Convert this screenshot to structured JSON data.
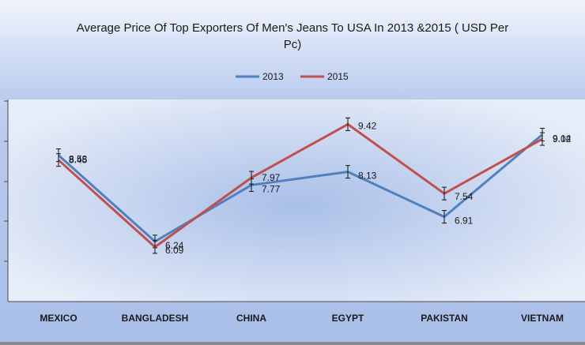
{
  "chart_data": {
    "type": "line",
    "title": "Average Price Of Top Exporters Of Men's Jeans To USA In 2013 &2015 ( USD Per Pc)",
    "xlabel": "",
    "ylabel": "",
    "categories": [
      "MEXICO",
      "BANGLADESH",
      "CHINA",
      "EGYPT",
      "PAKISTAN",
      "VIETNAM"
    ],
    "series": [
      {
        "name": "2013",
        "color": "#4f81bd",
        "values": [
          8.58,
          6.24,
          7.77,
          8.13,
          6.91,
          9.14
        ]
      },
      {
        "name": "2015",
        "color": "#c0504d",
        "values": [
          8.45,
          6.09,
          7.97,
          9.42,
          7.54,
          9.02
        ]
      }
    ],
    "error_bars": true,
    "legend_position": "top-center",
    "grid": false,
    "y_tick_labels_visible": false
  }
}
